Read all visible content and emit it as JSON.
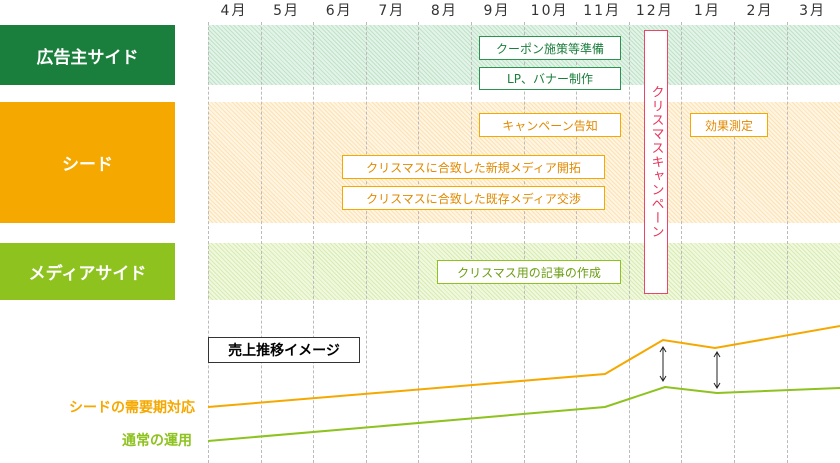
{
  "months": [
    "4月",
    "5月",
    "6月",
    "7月",
    "8月",
    "9月",
    "10月",
    "11月",
    "12月",
    "1月",
    "2月",
    "3月"
  ],
  "rows": [
    {
      "label": "広告主サイド",
      "color": "#1a7f3c"
    },
    {
      "label": "シード",
      "color": "#f5a800"
    },
    {
      "label": "メディアサイド",
      "color": "#8dc21f"
    }
  ],
  "tasks": {
    "coupon": "クーポン施策等準備",
    "lp": "LP、バナー制作",
    "announce": "キャンペーン告知",
    "measure": "効果測定",
    "new_media": "クリスマスに合致した新規メディア開拓",
    "existing_media": "クリスマスに合致した既存メディア交渉",
    "article": "クリスマス用の記事の作成"
  },
  "campaign": {
    "label": "クリスマスキャンペーン",
    "color": "#e8476a"
  },
  "sales": {
    "title": "売上推移イメージ",
    "series": [
      {
        "name": "シードの需要期対応",
        "color": "#f5a800"
      },
      {
        "name": "通常の運用",
        "color": "#8dc21f"
      }
    ]
  }
}
